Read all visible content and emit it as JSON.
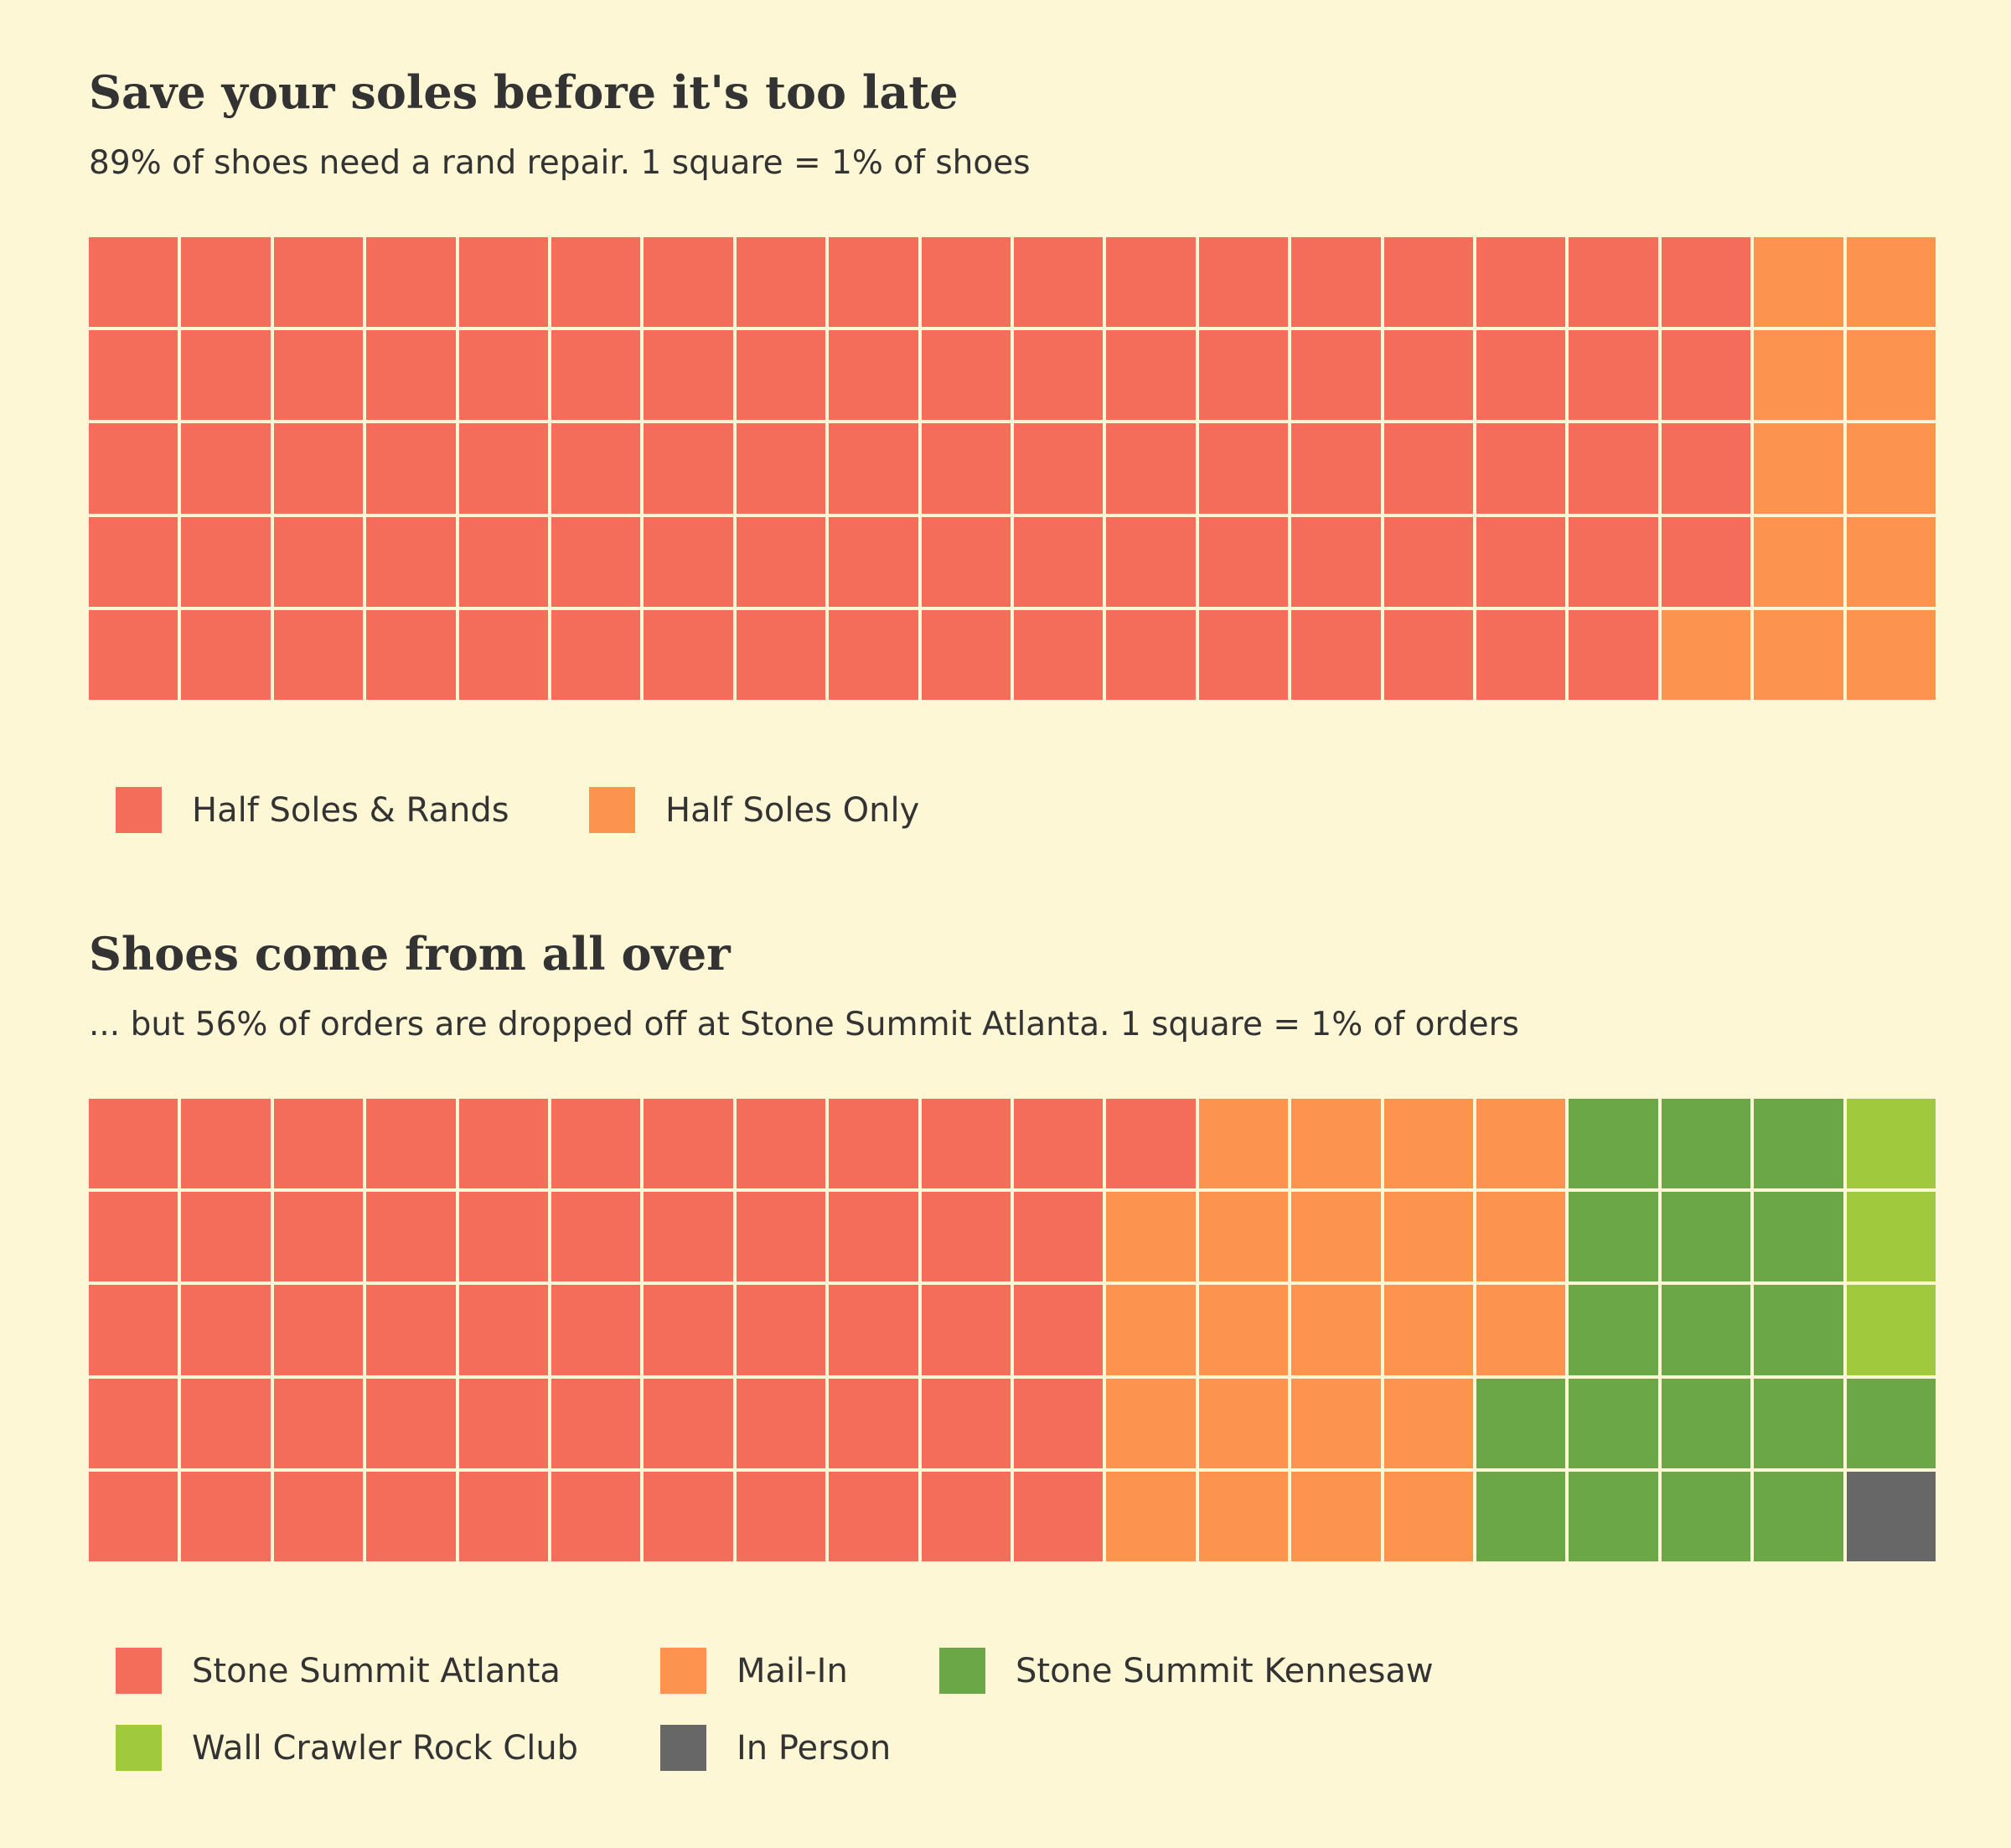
{
  "chart_data": [
    {
      "type": "waffle",
      "title": "Save your soles before it's too late",
      "subtitle": "89% of shoes need a rand repair. 1 square = 1% of shoes",
      "grid": {
        "rows": 5,
        "cols": 20,
        "fill_order": "column-major, top-to-bottom"
      },
      "categories": [
        "Half Soles & Rands",
        "Half Soles Only"
      ],
      "values": [
        89,
        11
      ],
      "colors": [
        "#f46d5a",
        "#fc944f"
      ],
      "legend": [
        {
          "label": "Half Soles & Rands",
          "color": "#f46d5a"
        },
        {
          "label": "Half Soles Only",
          "color": "#fc944f"
        }
      ]
    },
    {
      "type": "waffle",
      "title": "Shoes come from all over",
      "subtitle": "... but 56% of orders are dropped off at Stone Summit Atlanta. 1 square = 1% of orders",
      "grid": {
        "rows": 5,
        "cols": 20,
        "fill_order": "column-major, top-to-bottom"
      },
      "categories": [
        "Stone Summit Atlanta",
        "Mail-In",
        "Stone Summit Kennesaw",
        "Wall Crawler Rock Club",
        "In Person"
      ],
      "values": [
        56,
        22,
        18,
        3,
        1
      ],
      "cell_order": [
        "Stone Summit Atlanta",
        "Mail-In",
        "Stone Summit Kennesaw",
        "Wall Crawler Rock Club",
        "Stone Summit Kennesaw",
        "In Person"
      ],
      "cell_counts": [
        56,
        22,
        17,
        3,
        1,
        1
      ],
      "colors": [
        "#f46d5a",
        "#fc944f",
        "#6ba747",
        "#a0c93d",
        "#676767"
      ],
      "legend": [
        {
          "label": "Stone Summit Atlanta",
          "color": "#f46d5a"
        },
        {
          "label": "Mail-In",
          "color": "#fc944f"
        },
        {
          "label": "Stone Summit Kennesaw",
          "color": "#6ba747"
        },
        {
          "label": "Wall Crawler Rock Club",
          "color": "#a0c93d"
        },
        {
          "label": "In Person",
          "color": "#676767"
        }
      ]
    }
  ]
}
